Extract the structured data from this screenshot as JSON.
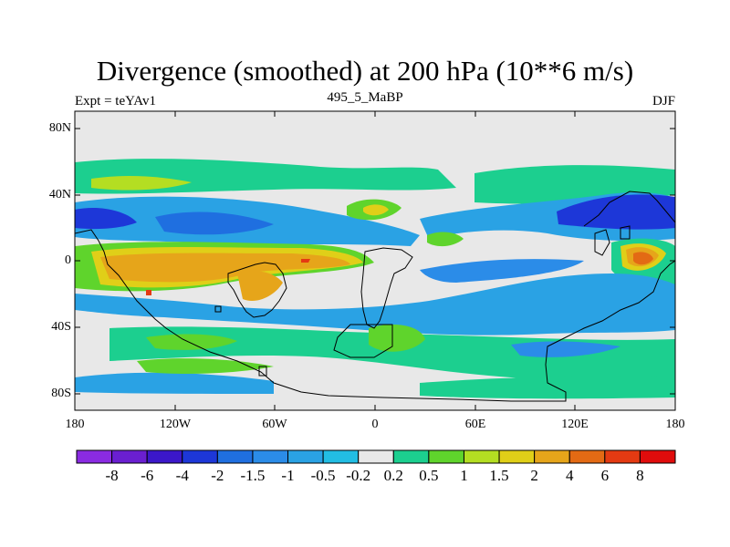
{
  "title": "Divergence (smoothed) at 200 hPa (10**6 m/s)",
  "subtitle_left": "Expt = teYAv1",
  "subtitle_center": "495_5_MaBP",
  "subtitle_right": "DJF",
  "lat_labels": [
    "80N",
    "40N",
    "0",
    "40S",
    "80S"
  ],
  "lon_labels": [
    "180",
    "120W",
    "60W",
    "0",
    "60E",
    "120E",
    "180"
  ],
  "colorbar": {
    "colors": [
      "#8a2be2",
      "#6a1fd0",
      "#3b17c9",
      "#1d37d8",
      "#1f6fe0",
      "#2b8ce8",
      "#2aa2e4",
      "#22bde3",
      "#e8e8e8",
      "#1ccf8f",
      "#5fd42c",
      "#b4de22",
      "#e0cf18",
      "#e6a51a",
      "#e36a14",
      "#e43a12",
      "#e00c0c"
    ],
    "labels": [
      "-8",
      "-6",
      "-4",
      "-2",
      "-1.5",
      "-1",
      "-0.5",
      "-0.2",
      "0.2",
      "0.5",
      "1",
      "1.5",
      "2",
      "4",
      "6",
      "8"
    ]
  },
  "legend_colors": {
    "land_outline": "#000000",
    "background": "#e8e8e8"
  }
}
